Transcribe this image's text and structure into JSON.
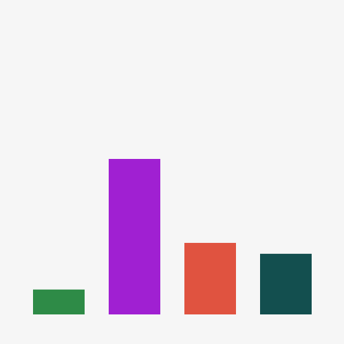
{
  "chart_data": {
    "type": "bar",
    "categories": [
      "",
      "",
      "",
      ""
    ],
    "values": [
      16,
      100,
      46,
      39
    ],
    "colors": [
      "#2e8b47",
      "#a020d2",
      "#e05340",
      "#134f4f"
    ],
    "ylim": [
      0,
      200
    ],
    "grid": false,
    "legend": "none",
    "title": "",
    "xlabel": "",
    "ylabel": ""
  }
}
